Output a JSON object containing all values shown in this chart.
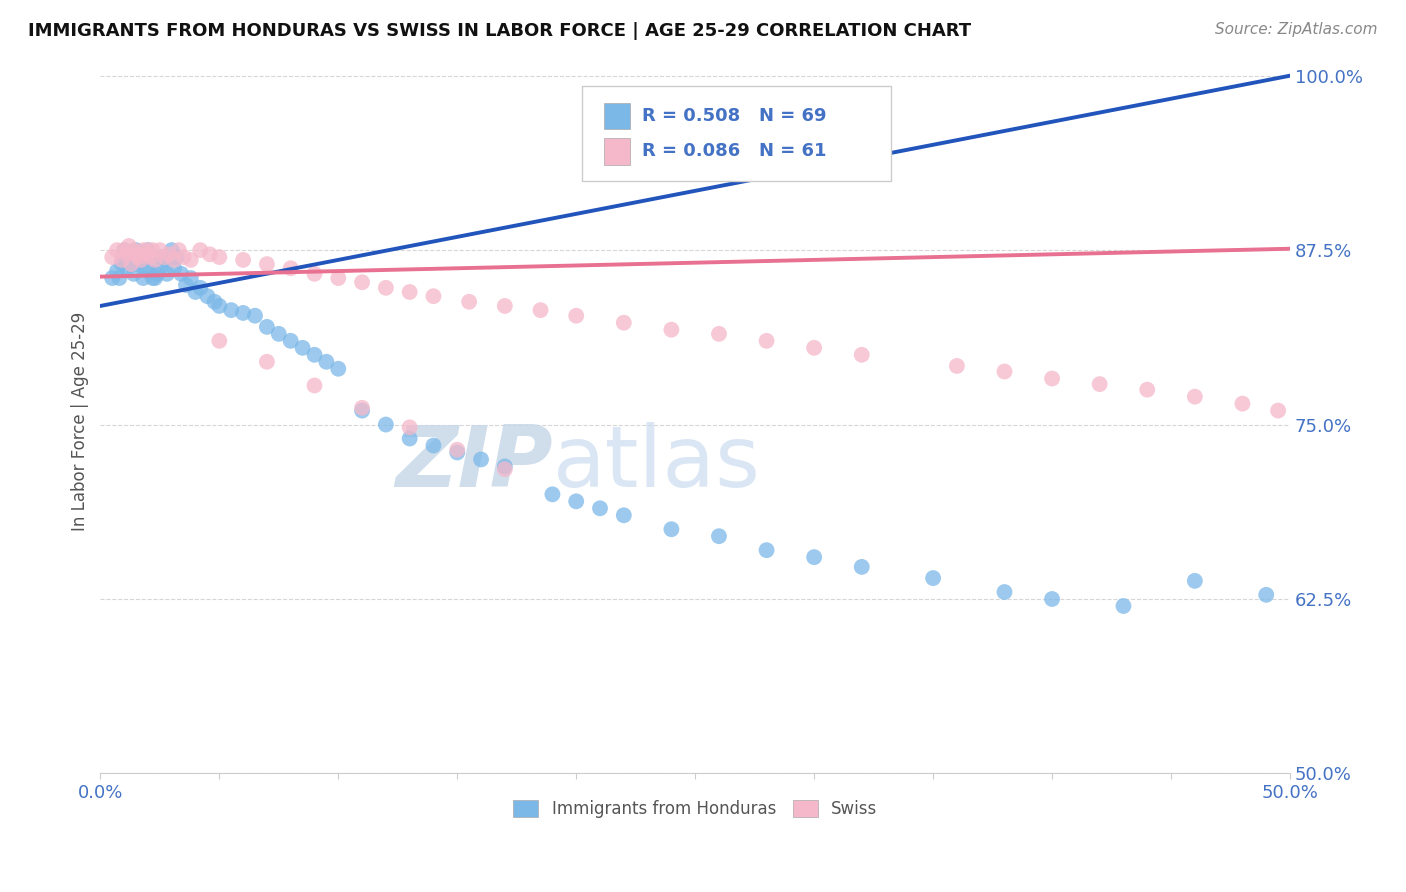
{
  "title": "IMMIGRANTS FROM HONDURAS VS SWISS IN LABOR FORCE | AGE 25-29 CORRELATION CHART",
  "source": "Source: ZipAtlas.com",
  "ylabel": "In Labor Force | Age 25-29",
  "xlim": [
    0.0,
    0.5
  ],
  "ylim": [
    0.5,
    1.005
  ],
  "xticks": [
    0.0,
    0.05,
    0.1,
    0.15,
    0.2,
    0.25,
    0.3,
    0.35,
    0.4,
    0.45,
    0.5
  ],
  "xticklabels": [
    "0.0%",
    "",
    "",
    "",
    "",
    "",
    "",
    "",
    "",
    "",
    "50.0%"
  ],
  "yticks": [
    0.5,
    0.625,
    0.75,
    0.875,
    1.0
  ],
  "yticklabels": [
    "50.0%",
    "62.5%",
    "75.0%",
    "87.5%",
    "100.0%"
  ],
  "blue_color": "#7bb8e8",
  "pink_color": "#f5b8ca",
  "blue_line_color": "#2255bb",
  "pink_line_color": "#e87090",
  "legend_R_blue": "R = 0.508",
  "legend_N_blue": "N = 69",
  "legend_R_pink": "R = 0.086",
  "legend_N_pink": "N = 61",
  "legend_label_blue": "Immigrants from Honduras",
  "legend_label_pink": "Swiss",
  "watermark_ZIP": "ZIP",
  "watermark_atlas": "atlas",
  "blue_trend_x": [
    0.0,
    0.5
  ],
  "blue_trend_y": [
    0.835,
    1.0
  ],
  "pink_trend_x": [
    0.0,
    0.5
  ],
  "pink_trend_y": [
    0.856,
    0.876
  ],
  "blue_x": [
    0.005,
    0.007,
    0.008,
    0.009,
    0.01,
    0.01,
    0.011,
    0.012,
    0.013,
    0.014,
    0.015,
    0.015,
    0.016,
    0.017,
    0.018,
    0.019,
    0.02,
    0.02,
    0.021,
    0.022,
    0.023,
    0.024,
    0.025,
    0.026,
    0.027,
    0.028,
    0.03,
    0.031,
    0.032,
    0.034,
    0.036,
    0.038,
    0.04,
    0.042,
    0.045,
    0.048,
    0.05,
    0.055,
    0.06,
    0.065,
    0.07,
    0.075,
    0.08,
    0.085,
    0.09,
    0.095,
    0.1,
    0.11,
    0.12,
    0.13,
    0.14,
    0.15,
    0.16,
    0.17,
    0.19,
    0.2,
    0.21,
    0.22,
    0.24,
    0.26,
    0.28,
    0.3,
    0.32,
    0.35,
    0.38,
    0.4,
    0.43,
    0.46,
    0.49
  ],
  "blue_y": [
    0.855,
    0.86,
    0.855,
    0.865,
    0.87,
    0.875,
    0.862,
    0.868,
    0.872,
    0.858,
    0.875,
    0.865,
    0.868,
    0.872,
    0.855,
    0.862,
    0.875,
    0.86,
    0.87,
    0.855,
    0.855,
    0.858,
    0.862,
    0.87,
    0.868,
    0.858,
    0.875,
    0.862,
    0.87,
    0.858,
    0.85,
    0.855,
    0.845,
    0.848,
    0.842,
    0.838,
    0.835,
    0.832,
    0.83,
    0.828,
    0.82,
    0.815,
    0.81,
    0.805,
    0.8,
    0.795,
    0.79,
    0.76,
    0.75,
    0.74,
    0.735,
    0.73,
    0.725,
    0.72,
    0.7,
    0.695,
    0.69,
    0.685,
    0.675,
    0.67,
    0.66,
    0.655,
    0.648,
    0.64,
    0.63,
    0.625,
    0.62,
    0.638,
    0.628
  ],
  "pink_x": [
    0.005,
    0.007,
    0.009,
    0.01,
    0.011,
    0.012,
    0.013,
    0.014,
    0.015,
    0.016,
    0.017,
    0.018,
    0.019,
    0.02,
    0.021,
    0.022,
    0.023,
    0.025,
    0.027,
    0.029,
    0.031,
    0.033,
    0.035,
    0.038,
    0.042,
    0.046,
    0.05,
    0.06,
    0.07,
    0.08,
    0.09,
    0.1,
    0.11,
    0.12,
    0.13,
    0.14,
    0.155,
    0.17,
    0.185,
    0.2,
    0.22,
    0.24,
    0.26,
    0.28,
    0.3,
    0.32,
    0.36,
    0.38,
    0.4,
    0.42,
    0.44,
    0.46,
    0.48,
    0.495,
    0.05,
    0.07,
    0.09,
    0.11,
    0.13,
    0.15,
    0.17
  ],
  "pink_y": [
    0.87,
    0.875,
    0.868,
    0.875,
    0.872,
    0.878,
    0.865,
    0.875,
    0.872,
    0.87,
    0.868,
    0.875,
    0.872,
    0.875,
    0.87,
    0.875,
    0.868,
    0.875,
    0.87,
    0.872,
    0.868,
    0.875,
    0.87,
    0.868,
    0.875,
    0.872,
    0.87,
    0.868,
    0.865,
    0.862,
    0.858,
    0.855,
    0.852,
    0.848,
    0.845,
    0.842,
    0.838,
    0.835,
    0.832,
    0.828,
    0.823,
    0.818,
    0.815,
    0.81,
    0.805,
    0.8,
    0.792,
    0.788,
    0.783,
    0.779,
    0.775,
    0.77,
    0.765,
    0.76,
    0.81,
    0.795,
    0.778,
    0.762,
    0.748,
    0.732,
    0.718
  ]
}
